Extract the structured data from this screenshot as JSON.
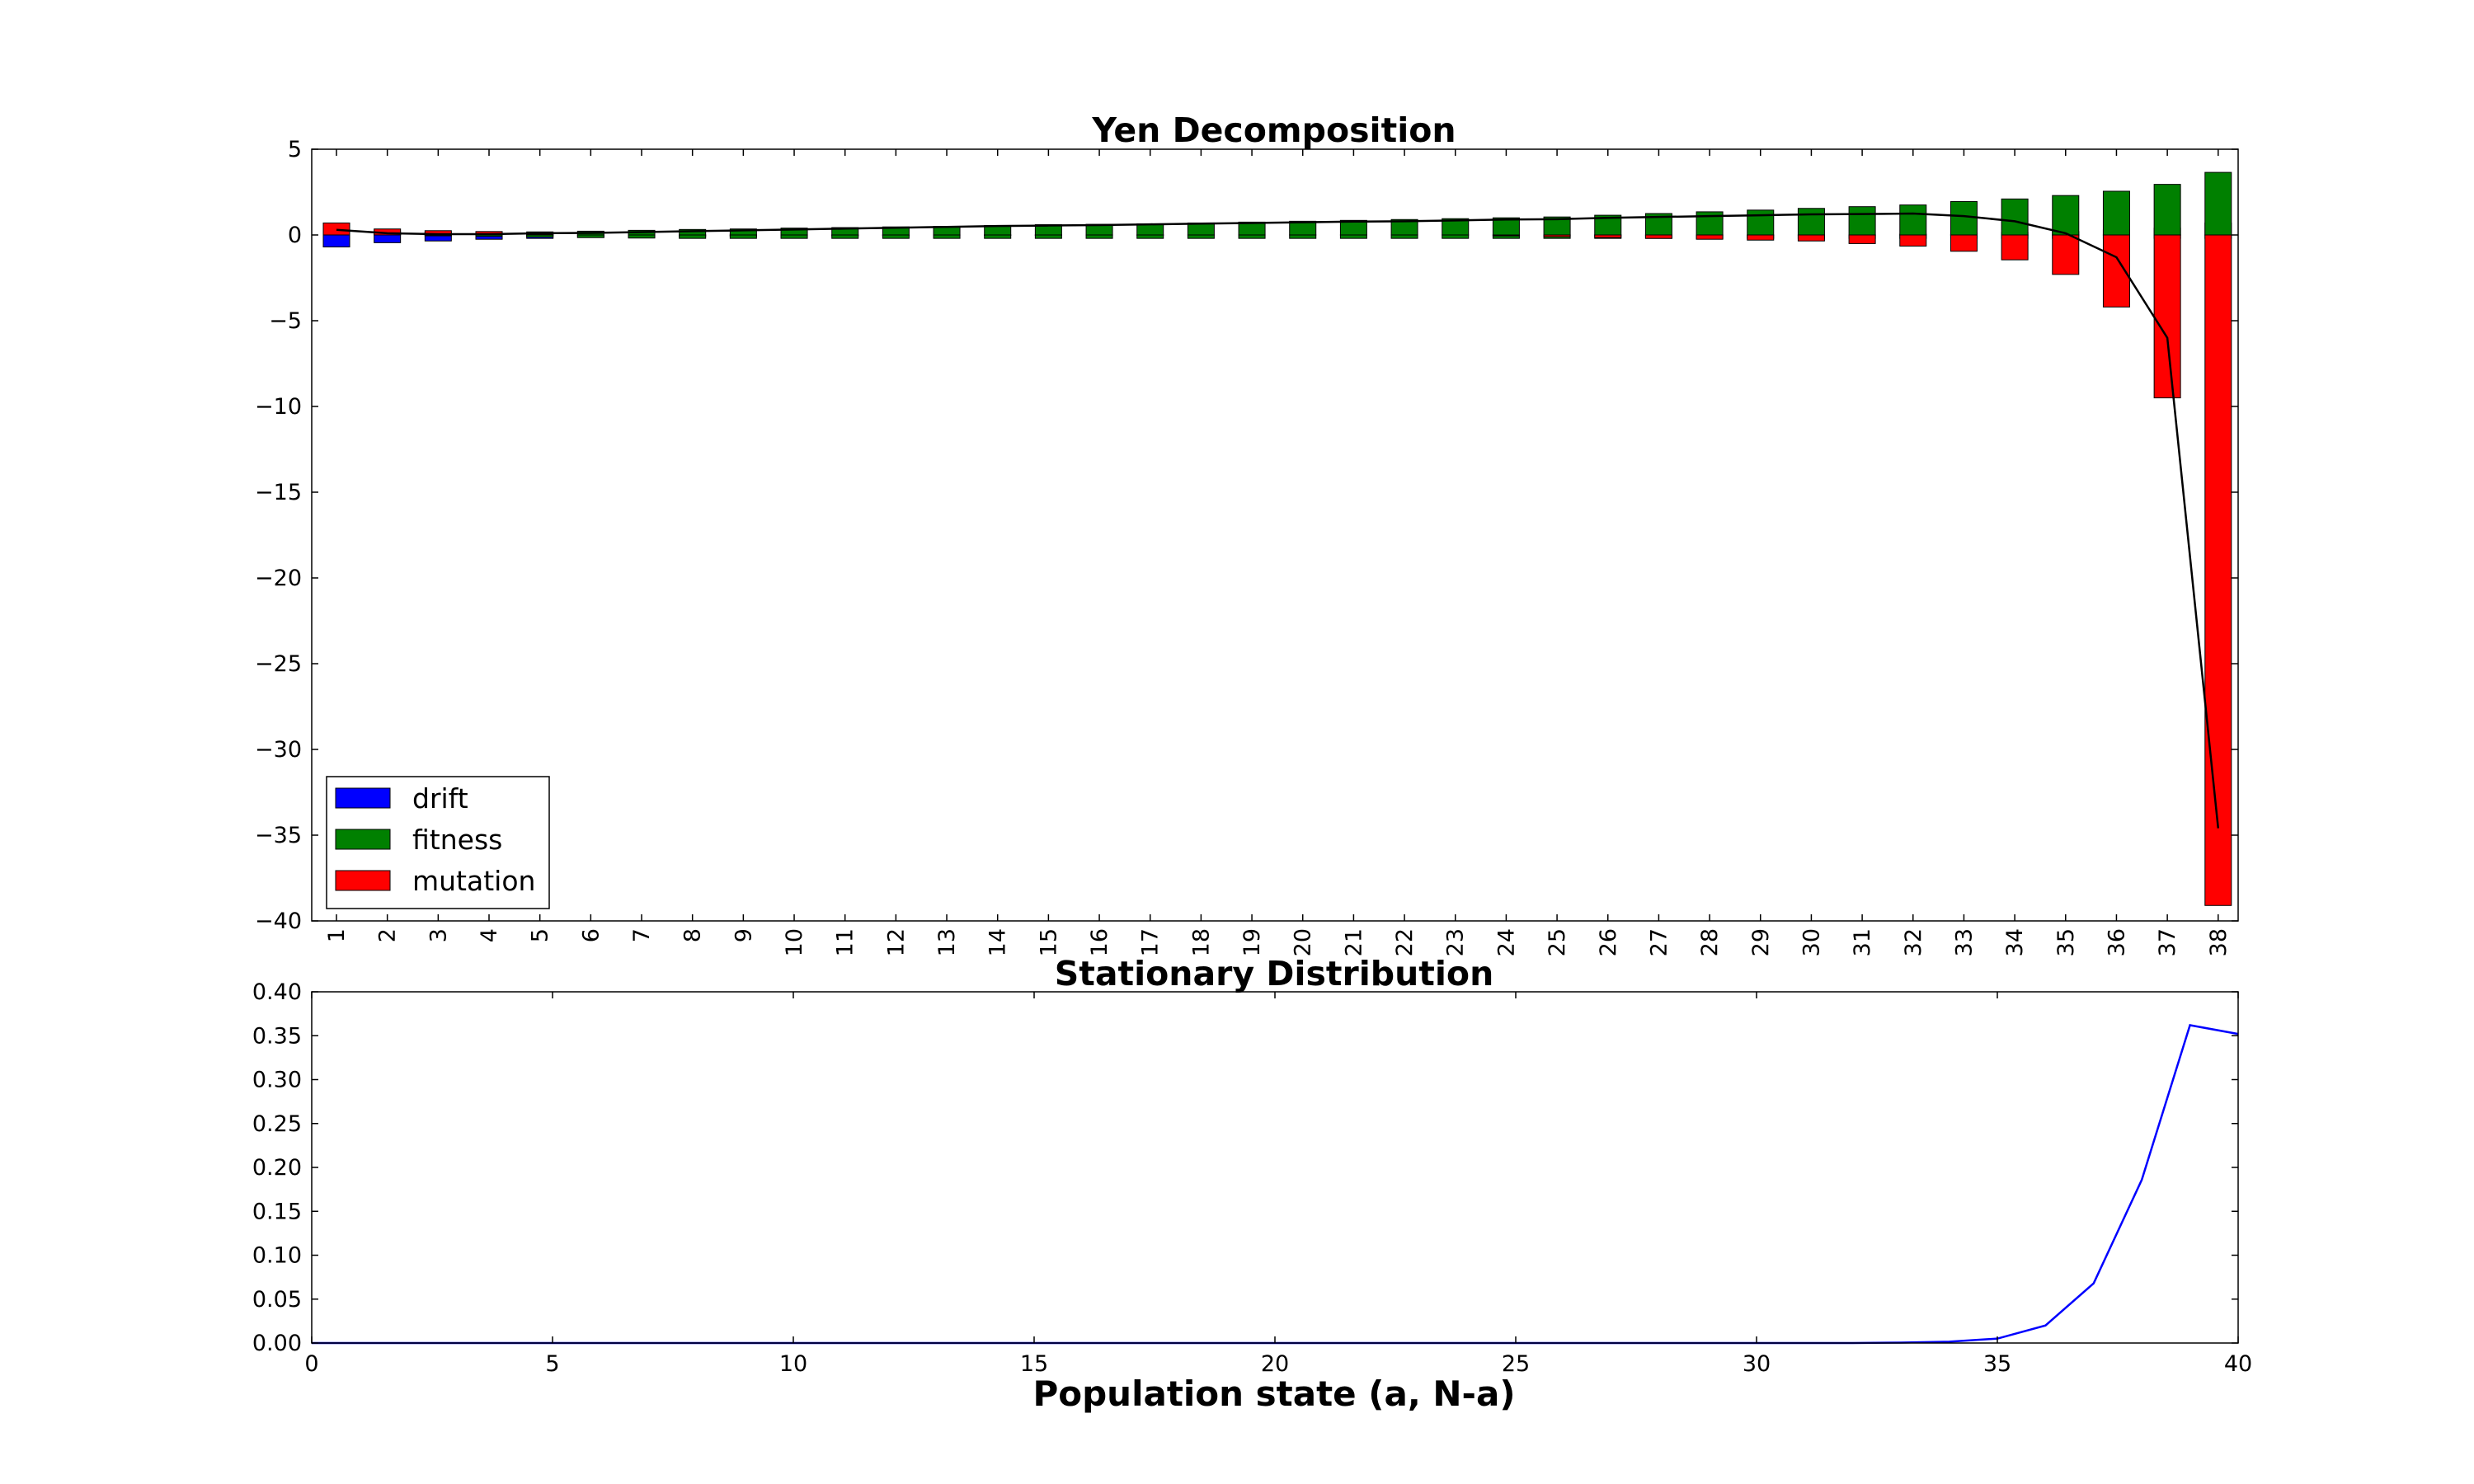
{
  "chart_data": [
    {
      "type": "bar",
      "stacked": true,
      "title": "Yen Decomposition",
      "xlabel": "",
      "ylabel": "",
      "categories": [
        "1",
        "2",
        "3",
        "4",
        "5",
        "6",
        "7",
        "8",
        "9",
        "10",
        "11",
        "12",
        "13",
        "14",
        "15",
        "16",
        "17",
        "18",
        "19",
        "20",
        "21",
        "22",
        "23",
        "24",
        "25",
        "26",
        "27",
        "28",
        "29",
        "30",
        "31",
        "32",
        "33",
        "34",
        "35",
        "36",
        "37",
        "38"
      ],
      "ylim": [
        -40,
        5
      ],
      "yticks": [
        5,
        0,
        -5,
        -10,
        -15,
        -20,
        -25,
        -30,
        -35,
        -40
      ],
      "ytick_labels": [
        "5",
        "0",
        "−5",
        "−10",
        "−15",
        "−20",
        "−25",
        "−30",
        "−35",
        "−40"
      ],
      "legend_position": "lower-left",
      "series": [
        {
          "name": "drift",
          "color": "#0000ff",
          "values": [
            -0.7,
            -0.45,
            -0.35,
            -0.25,
            -0.2,
            -0.15,
            -0.12,
            -0.1,
            -0.08,
            -0.06,
            -0.05,
            -0.04,
            -0.03,
            -0.02,
            -0.02,
            -0.01,
            -0.01,
            0,
            0,
            0,
            0,
            0,
            0,
            0,
            0,
            0,
            0,
            0,
            0,
            0,
            0,
            0.05,
            0.1,
            0.15,
            0.2,
            0.3,
            0.4,
            0.7
          ]
        },
        {
          "name": "fitness",
          "color": "#008000",
          "values": [
            0,
            0,
            -0.05,
            -0.08,
            -0.12,
            -0.15,
            -0.18,
            -0.2,
            -0.2,
            -0.2,
            -0.2,
            -0.2,
            -0.2,
            -0.2,
            -0.2,
            -0.2,
            -0.2,
            -0.2,
            -0.2,
            -0.2,
            -0.2,
            -0.2,
            -0.2,
            -0.2,
            -0.2,
            -0.2,
            -0.2,
            -0.2,
            -0.2,
            -0.2,
            -0.2,
            -0.2,
            -0.2,
            -0.2,
            -0.2,
            -0.2,
            -0.2,
            -0.2
          ]
        },
        {
          "name": "fitness",
          "color": "#008000",
          "values": [
            0.3,
            0.2,
            0.15,
            0.15,
            0.18,
            0.22,
            0.27,
            0.32,
            0.35,
            0.4,
            0.43,
            0.47,
            0.5,
            0.55,
            0.6,
            0.62,
            0.65,
            0.7,
            0.75,
            0.8,
            0.85,
            0.9,
            0.95,
            1.0,
            1.05,
            1.15,
            1.25,
            1.35,
            1.45,
            1.55,
            1.65,
            1.75,
            1.95,
            2.1,
            2.3,
            2.55,
            2.95,
            3.65
          ]
        },
        {
          "name": "mutation",
          "color": "#ff0000",
          "values": [
            0.7,
            0.35,
            0.25,
            0.2,
            0.05,
            0,
            0,
            0,
            0,
            0,
            0,
            0,
            0,
            0,
            0,
            0,
            0,
            0,
            0,
            0,
            0,
            0,
            0,
            0,
            0,
            0,
            0,
            0,
            0,
            0,
            0,
            0,
            0,
            0,
            0,
            0,
            0,
            0
          ]
        },
        {
          "name": "mutation",
          "color": "#ff0000",
          "values": [
            0,
            0,
            0,
            0,
            0,
            0,
            0,
            0,
            0,
            0,
            0,
            0,
            0,
            0,
            0,
            0,
            0,
            0,
            0,
            0,
            0,
            0,
            0,
            -0.05,
            -0.1,
            -0.15,
            -0.2,
            -0.25,
            -0.3,
            -0.35,
            -0.5,
            -0.65,
            -0.95,
            -1.45,
            -2.3,
            -4.2,
            -9.5,
            -39.1
          ]
        }
      ],
      "line": {
        "name": "",
        "color": "#000000",
        "values": [
          0.3,
          0.1,
          0.05,
          0.05,
          0.1,
          0.12,
          0.17,
          0.22,
          0.27,
          0.32,
          0.37,
          0.42,
          0.47,
          0.52,
          0.55,
          0.58,
          0.62,
          0.66,
          0.7,
          0.74,
          0.78,
          0.8,
          0.85,
          0.9,
          0.92,
          1.0,
          1.05,
          1.1,
          1.15,
          1.2,
          1.22,
          1.25,
          1.1,
          0.8,
          0.1,
          -1.3,
          -6.0,
          -34.6
        ]
      }
    },
    {
      "type": "line",
      "title": "Stationary Distribution",
      "xlabel": "Population state (a, N-a)",
      "ylabel": "",
      "xlim": [
        0,
        40
      ],
      "ylim": [
        0,
        0.4
      ],
      "xticks": [
        0,
        5,
        10,
        15,
        20,
        25,
        30,
        35,
        40
      ],
      "yticks": [
        0.0,
        0.05,
        0.1,
        0.15,
        0.2,
        0.25,
        0.3,
        0.35,
        0.4
      ],
      "ytick_labels": [
        "0.00",
        "0.05",
        "0.10",
        "0.15",
        "0.20",
        "0.25",
        "0.30",
        "0.35",
        "0.40"
      ],
      "series": [
        {
          "name": "",
          "color": "#0000ff",
          "x": [
            0,
            1,
            2,
            3,
            4,
            5,
            6,
            7,
            8,
            9,
            10,
            11,
            12,
            13,
            14,
            15,
            16,
            17,
            18,
            19,
            20,
            21,
            22,
            23,
            24,
            25,
            26,
            27,
            28,
            29,
            30,
            31,
            32,
            33,
            34,
            35,
            36,
            37,
            38,
            39,
            40
          ],
          "values": [
            0,
            0,
            0,
            0,
            0,
            0,
            0,
            0,
            0,
            0,
            0,
            0,
            0,
            0,
            0,
            0,
            0,
            0,
            0,
            0,
            0,
            0,
            0,
            0,
            0,
            0,
            0,
            0,
            0,
            0,
            0,
            0,
            0,
            0.0005,
            0.0015,
            0.005,
            0.02,
            0.068,
            0.186,
            0.362,
            0.352
          ]
        }
      ]
    }
  ]
}
